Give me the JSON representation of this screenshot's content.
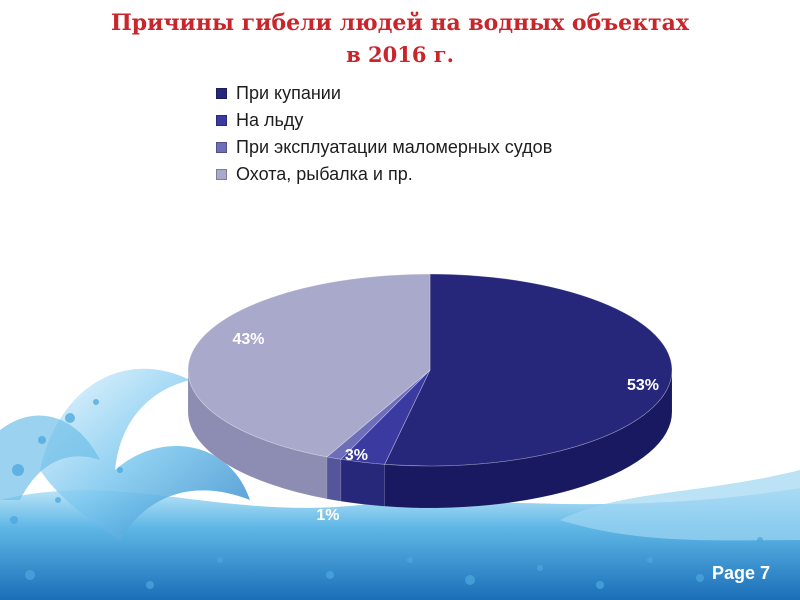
{
  "title": {
    "line1": "Причины гибели людей на водных объектах",
    "line2": "в 2016 г."
  },
  "page_label": "Page 7",
  "chart_data": {
    "type": "pie",
    "style": "3d",
    "legend_position": "top",
    "slices": [
      {
        "label": "При купании",
        "value": 53,
        "display": "53%",
        "color": "#26277a",
        "side_color": "#181960",
        "label_color": "#ffffff"
      },
      {
        "label": "На льду",
        "value": 3,
        "display": "3%",
        "color": "#3a3aa0",
        "side_color": "#28287a",
        "label_color": "#ffffff"
      },
      {
        "label": "При эксплуатации маломерных судов",
        "value": 1,
        "display": "1%",
        "color": "#6d6db8",
        "side_color": "#55559c",
        "label_color": "#ffffff"
      },
      {
        "label": "Охота, рыбалка и пр.",
        "value": 43,
        "display": "43%",
        "color": "#a9a9cc",
        "side_color": "#8d8db4",
        "label_color": "#ffffff"
      }
    ]
  }
}
